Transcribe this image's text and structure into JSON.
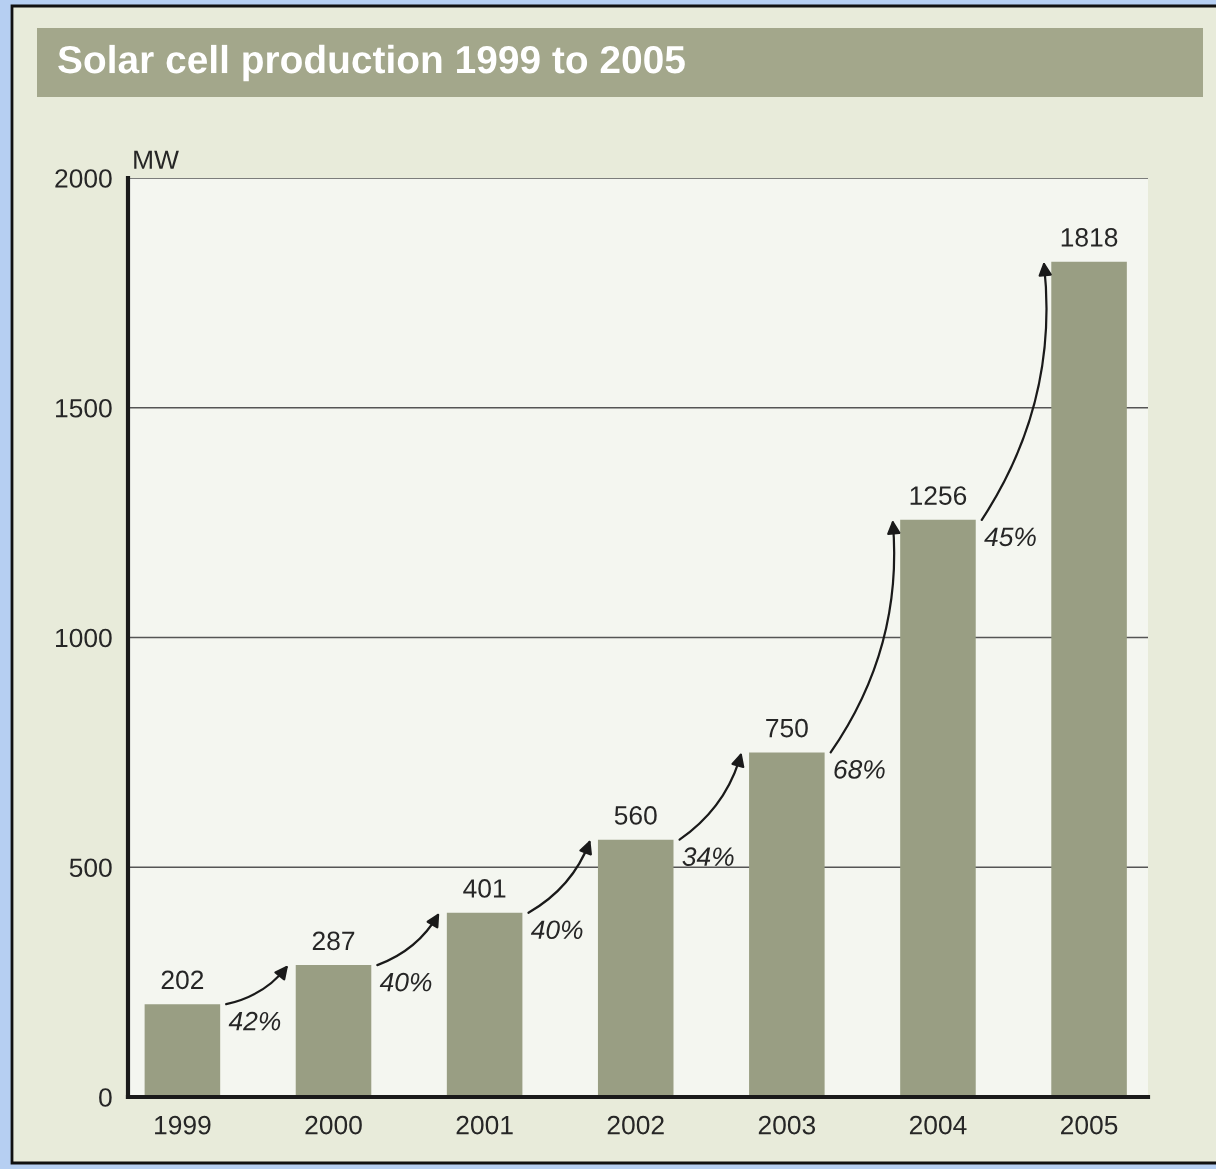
{
  "chart_data": {
    "type": "bar",
    "title": "Solar cell production 1999 to 2005",
    "ylabel": "MW",
    "categories": [
      "1999",
      "2000",
      "2001",
      "2002",
      "2003",
      "2004",
      "2005"
    ],
    "values": [
      202,
      287,
      401,
      560,
      750,
      1256,
      1818
    ],
    "color": "#999e83",
    "ylim": [
      0,
      2000
    ],
    "yticks": [
      0,
      500,
      1000,
      1500,
      2000
    ],
    "grid": "y",
    "data_labels": true,
    "annotations": [
      {
        "text": "42%",
        "x": "1999",
        "y": 202
      },
      {
        "text": "40%",
        "x": "2000",
        "y": 287
      },
      {
        "text": "40%",
        "x": "2001",
        "y": 401
      },
      {
        "text": "34%",
        "x": "2002",
        "y": 560
      },
      {
        "text": "68%",
        "x": "2003",
        "y": 750
      },
      {
        "text": "45%",
        "x": "2004",
        "y": 1256
      }
    ]
  }
}
